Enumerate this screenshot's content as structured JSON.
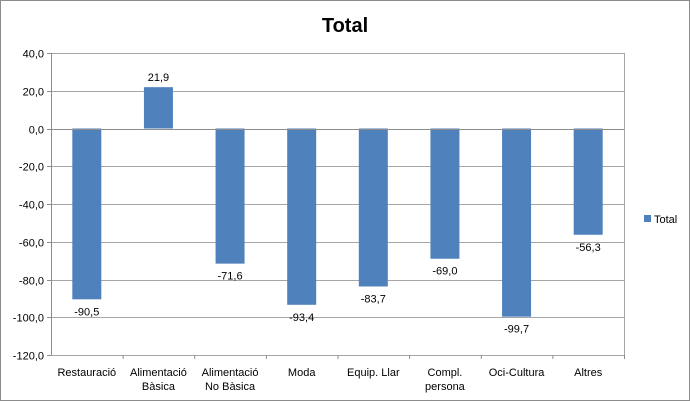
{
  "chart_data": {
    "type": "bar",
    "title": "Total",
    "categories": [
      [
        "Restauració"
      ],
      [
        "Alimentació",
        "Bàsica"
      ],
      [
        "Alimentació",
        "No Bàsica"
      ],
      [
        "Moda"
      ],
      [
        "Equip. Llar"
      ],
      [
        "Compl.",
        "persona"
      ],
      [
        "Oci-Cultura"
      ],
      [
        "Altres"
      ]
    ],
    "series": [
      {
        "name": "Total",
        "color": "#4f81bd",
        "values": [
          -90.5,
          21.9,
          -71.6,
          -93.4,
          -83.7,
          -69.0,
          -99.7,
          -56.3
        ],
        "value_labels": [
          "-90,5",
          "21,9",
          "-71,6",
          "-93,4",
          "-83,7",
          "-69,0",
          "-99,7",
          "-56,3"
        ]
      }
    ],
    "ylim": [
      -120,
      40
    ],
    "yticks": [
      40,
      20,
      0,
      -20,
      -40,
      -60,
      -80,
      -100,
      -120
    ],
    "ytick_labels": [
      "40,0",
      "20,0",
      "0,0",
      "-20,0",
      "-40,0",
      "-60,0",
      "-80,0",
      "-100,0",
      "-120,0"
    ],
    "grid": true,
    "legend_position": "right"
  }
}
